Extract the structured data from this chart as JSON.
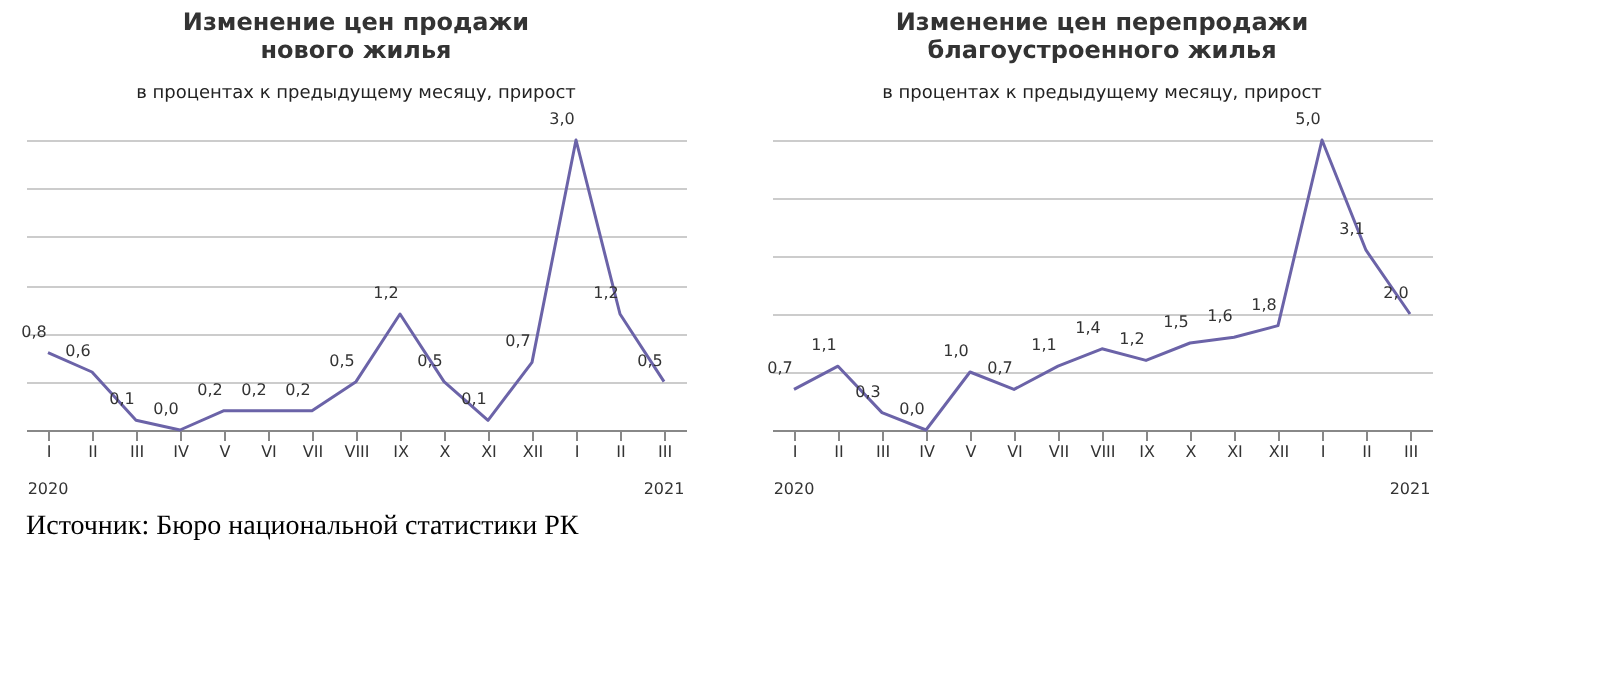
{
  "chart_data": [
    {
      "type": "line",
      "title": "Изменение цен продажи\nнового жилья",
      "subtitle": "в процентах к предыдущему месяцу, прирост",
      "categories": [
        "I",
        "II",
        "III",
        "IV",
        "V",
        "VI",
        "VII",
        "VIII",
        "IX",
        "X",
        "XI",
        "XII",
        "I",
        "II",
        "III"
      ],
      "series": [
        {
          "color": "#6b63a8",
          "values": [
            0.8,
            0.6,
            0.1,
            0.0,
            0.2,
            0.2,
            0.2,
            0.5,
            1.2,
            0.5,
            0.1,
            0.7,
            3.0,
            1.2,
            0.5
          ],
          "value_labels": [
            "0,8",
            "0,6",
            "0,1",
            "0,0",
            "0,2",
            "0,2",
            "0,2",
            "0,5",
            "1,2",
            "0,5",
            "0,1",
            "0,7",
            "3,0",
            "1,2",
            "0,5"
          ]
        }
      ],
      "grid": "y",
      "tick_labels": "x",
      "marker": "none",
      "line_style": "solid",
      "annotations": [
        "2020",
        "2021"
      ]
    },
    {
      "type": "line",
      "title": "Изменение цен перепродажи\nблагоустроенного жилья",
      "subtitle": "в процентах к предыдущему месяцу, прирост",
      "categories": [
        "I",
        "II",
        "III",
        "IV",
        "V",
        "VI",
        "VII",
        "VIII",
        "IX",
        "X",
        "XI",
        "XII",
        "I",
        "II",
        "III"
      ],
      "series": [
        {
          "color": "#6b63a8",
          "values": [
            0.7,
            1.1,
            0.3,
            0.0,
            1.0,
            0.7,
            1.1,
            1.4,
            1.2,
            1.5,
            1.6,
            1.8,
            5.0,
            3.1,
            2.0
          ],
          "value_labels": [
            "0,7",
            "1,1",
            "0,3",
            "0,0",
            "1,0",
            "0,7",
            "1,1",
            "1,4",
            "1,2",
            "1,5",
            "1,6",
            "1,8",
            "5,0",
            "3,1",
            "2,0"
          ]
        }
      ],
      "grid": "y",
      "tick_labels": "x",
      "marker": "none",
      "line_style": "solid",
      "annotations": [
        "2020",
        "2021",
        "Источник: Бюро национальной статистики РК"
      ]
    }
  ]
}
